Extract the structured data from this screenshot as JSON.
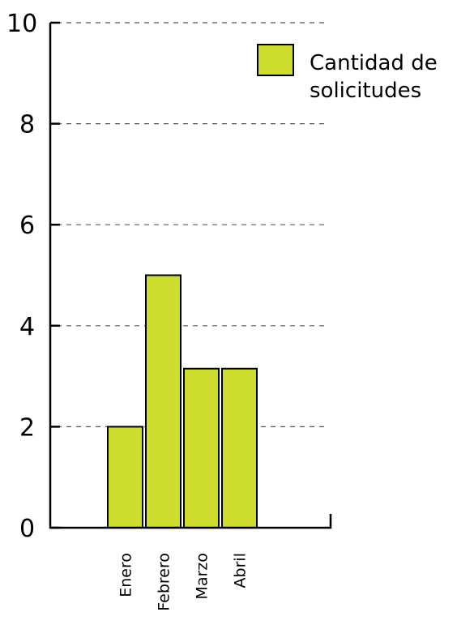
{
  "chart_data": {
    "type": "bar",
    "categories": [
      "Enero",
      "Febrero",
      "Marzo",
      "Abril"
    ],
    "series": [
      {
        "name": "Cantidad de solicitudes",
        "values": [
          2,
          5,
          3.15,
          3.15
        ]
      }
    ],
    "legend_lines": [
      "Cantidad de",
      "solicitudes"
    ],
    "ylim": [
      0,
      10
    ],
    "yticks": [
      0,
      2,
      4,
      6,
      8,
      10
    ],
    "ytick_labels": [
      "0",
      "2",
      "4",
      "6",
      "8",
      "10"
    ],
    "grid": true,
    "legend_position": "top-right",
    "colors": {
      "bar": "#cddc2f",
      "axis": "#000000",
      "grid": "#555555"
    }
  }
}
